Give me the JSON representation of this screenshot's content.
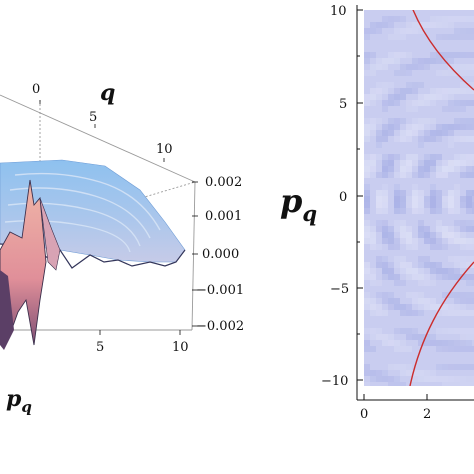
{
  "chart_data": [
    {
      "type": "surface",
      "title": "",
      "xlabel": "p_q",
      "ylabel": "q",
      "zlabel": "",
      "x_ticks": [
        "5",
        "10"
      ],
      "y_ticks": [
        "0",
        "5",
        "10"
      ],
      "z_ticks": [
        "0.002",
        "0.001",
        "0.000",
        "−0.001",
        "−0.002"
      ],
      "zlim": [
        -0.002,
        0.002
      ],
      "colors": {
        "surface_top": "#8ec1ef",
        "surface_mid": "#c6cbe8",
        "surface_peak": "#e9a0a3",
        "surface_deep": "#7f4f75"
      }
    },
    {
      "type": "heatmap",
      "title": "",
      "xlabel": "",
      "ylabel": "p_q",
      "x_ticks": [
        "0",
        "2"
      ],
      "y_ticks": [
        "10",
        "5",
        "0",
        "−5",
        "−10"
      ],
      "xlim": [
        0,
        2.9
      ],
      "ylim": [
        -10.5,
        10.5
      ],
      "colors": {
        "background": "#c9cdf0",
        "cell_dark": "#a8b0e6",
        "cell_light": "#dde0f6",
        "contour": "#cc2d2d"
      },
      "contour_label": ""
    }
  ],
  "labels": {
    "left_xlabel_base": "p",
    "left_xlabel_sub": "q",
    "left_ylabel": "q",
    "right_ylabel_base": "p",
    "right_ylabel_sub": "q"
  }
}
